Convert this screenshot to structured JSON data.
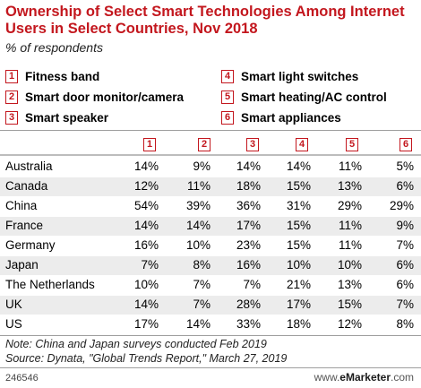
{
  "title": "Ownership of Select Smart Technologies Among Internet Users in Select Countries, Nov 2018",
  "subtitle": "% of respondents",
  "legend": [
    {
      "num": "1",
      "label": "Fitness band"
    },
    {
      "num": "2",
      "label": "Smart door monitor/camera"
    },
    {
      "num": "3",
      "label": "Smart speaker"
    },
    {
      "num": "4",
      "label": "Smart light switches"
    },
    {
      "num": "5",
      "label": "Smart heating/AC control"
    },
    {
      "num": "6",
      "label": "Smart appliances"
    }
  ],
  "accent_color": "#c3171e",
  "chart_data": {
    "type": "table",
    "columns": [
      "1",
      "2",
      "3",
      "4",
      "5",
      "6"
    ],
    "rows": [
      {
        "country": "Australia",
        "values": [
          "14%",
          "9%",
          "14%",
          "14%",
          "11%",
          "5%"
        ]
      },
      {
        "country": "Canada",
        "values": [
          "12%",
          "11%",
          "18%",
          "15%",
          "13%",
          "6%"
        ]
      },
      {
        "country": "China",
        "values": [
          "54%",
          "39%",
          "36%",
          "31%",
          "29%",
          "29%"
        ]
      },
      {
        "country": "France",
        "values": [
          "14%",
          "14%",
          "17%",
          "15%",
          "11%",
          "9%"
        ]
      },
      {
        "country": "Germany",
        "values": [
          "16%",
          "10%",
          "23%",
          "15%",
          "11%",
          "7%"
        ]
      },
      {
        "country": "Japan",
        "values": [
          "7%",
          "8%",
          "16%",
          "10%",
          "10%",
          "6%"
        ]
      },
      {
        "country": "The Netherlands",
        "values": [
          "10%",
          "7%",
          "7%",
          "21%",
          "13%",
          "6%"
        ]
      },
      {
        "country": "UK",
        "values": [
          "14%",
          "7%",
          "28%",
          "17%",
          "15%",
          "7%"
        ]
      },
      {
        "country": "US",
        "values": [
          "17%",
          "14%",
          "33%",
          "18%",
          "12%",
          "8%"
        ]
      }
    ]
  },
  "note": "Note: China and Japan surveys conducted Feb 2019",
  "source": "Source: Dynata, \"Global Trends Report,\" March 27, 2019",
  "footer_id": "246546",
  "brand_prefix": "www.",
  "brand_name": "eMarketer",
  "brand_suffix": ".com"
}
